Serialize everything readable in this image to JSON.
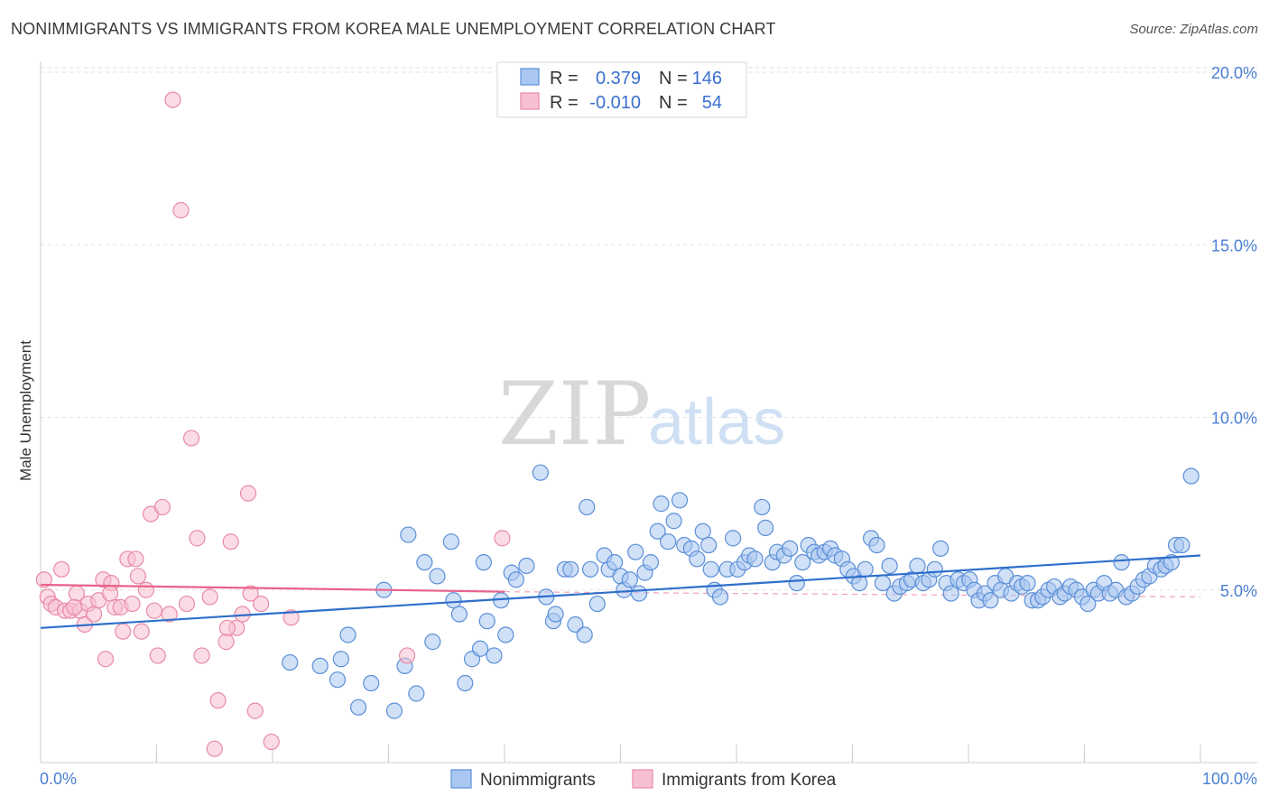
{
  "title": "NONIMMIGRANTS VS IMMIGRANTS FROM KOREA MALE UNEMPLOYMENT CORRELATION CHART",
  "source": "Source: ZipAtlas.com",
  "watermark": {
    "zip": "ZIP",
    "atlas": "atlas"
  },
  "chart_data": {
    "type": "scatter",
    "title": "NONIMMIGRANTS VS IMMIGRANTS FROM KOREA MALE UNEMPLOYMENT CORRELATION CHART",
    "xlabel": "",
    "ylabel": "Male Unemployment",
    "xlim": [
      0,
      100
    ],
    "ylim": [
      0,
      20.5
    ],
    "x_tick_labels": [
      "0.0%",
      "100.0%"
    ],
    "y_ticks": [
      5,
      10,
      15,
      20
    ],
    "y_tick_labels": [
      "5.0%",
      "10.0%",
      "15.0%",
      "20.0%"
    ],
    "grid": true,
    "legend": {
      "position": "top-center",
      "entries": [
        {
          "r_label": "R =",
          "r_value": "0.379",
          "n_label": "N =",
          "n_value": "146"
        },
        {
          "r_label": "R =",
          "r_value": "-0.010",
          "n_label": "N =",
          "n_value": "54"
        }
      ]
    },
    "series": [
      {
        "name": "Nonimmigrants",
        "color": "#a9c7f0",
        "stroke": "#5b8fd8",
        "trend_color": "#2f6fcb",
        "trend": {
          "x": [
            0,
            100
          ],
          "y": [
            3.9,
            6.0
          ]
        },
        "points": [
          [
            21.5,
            2.9
          ],
          [
            24.1,
            2.8
          ],
          [
            25.6,
            2.4
          ],
          [
            25.9,
            3.0
          ],
          [
            26.5,
            3.7
          ],
          [
            27.4,
            1.6
          ],
          [
            28.5,
            2.3
          ],
          [
            29.6,
            5.0
          ],
          [
            30.5,
            1.5
          ],
          [
            31.4,
            2.8
          ],
          [
            31.7,
            6.6
          ],
          [
            32.4,
            2.0
          ],
          [
            33.1,
            5.8
          ],
          [
            33.8,
            3.5
          ],
          [
            34.2,
            5.4
          ],
          [
            35.4,
            6.4
          ],
          [
            35.6,
            4.7
          ],
          [
            36.1,
            4.3
          ],
          [
            36.6,
            2.3
          ],
          [
            37.2,
            3.0
          ],
          [
            37.9,
            3.3
          ],
          [
            38.2,
            5.8
          ],
          [
            38.5,
            4.1
          ],
          [
            39.1,
            3.1
          ],
          [
            39.7,
            4.7
          ],
          [
            40.1,
            3.7
          ],
          [
            40.6,
            5.5
          ],
          [
            41.0,
            5.3
          ],
          [
            41.9,
            5.7
          ],
          [
            43.1,
            8.4
          ],
          [
            43.6,
            4.8
          ],
          [
            44.2,
            4.1
          ],
          [
            44.4,
            4.3
          ],
          [
            45.2,
            5.6
          ],
          [
            45.7,
            5.6
          ],
          [
            46.1,
            4.0
          ],
          [
            46.9,
            3.7
          ],
          [
            47.1,
            7.4
          ],
          [
            47.4,
            5.6
          ],
          [
            48.0,
            4.6
          ],
          [
            48.6,
            6.0
          ],
          [
            49.0,
            5.6
          ],
          [
            49.5,
            5.8
          ],
          [
            50.0,
            5.4
          ],
          [
            50.3,
            5.0
          ],
          [
            50.8,
            5.3
          ],
          [
            51.3,
            6.1
          ],
          [
            51.6,
            4.9
          ],
          [
            52.1,
            5.5
          ],
          [
            52.6,
            5.8
          ],
          [
            53.2,
            6.7
          ],
          [
            53.5,
            7.5
          ],
          [
            54.1,
            6.4
          ],
          [
            54.6,
            7.0
          ],
          [
            55.1,
            7.6
          ],
          [
            55.5,
            6.3
          ],
          [
            56.1,
            6.2
          ],
          [
            56.6,
            5.9
          ],
          [
            57.1,
            6.7
          ],
          [
            57.6,
            6.3
          ],
          [
            58.1,
            5.0
          ],
          [
            58.6,
            4.8
          ],
          [
            59.2,
            5.6
          ],
          [
            59.7,
            6.5
          ],
          [
            60.1,
            5.6
          ],
          [
            60.7,
            5.8
          ],
          [
            61.1,
            6.0
          ],
          [
            61.6,
            5.9
          ],
          [
            62.2,
            7.4
          ],
          [
            62.5,
            6.8
          ],
          [
            63.1,
            5.8
          ],
          [
            63.5,
            6.1
          ],
          [
            64.1,
            6.0
          ],
          [
            64.6,
            6.2
          ],
          [
            65.2,
            5.2
          ],
          [
            65.7,
            5.8
          ],
          [
            66.2,
            6.3
          ],
          [
            66.7,
            6.1
          ],
          [
            67.1,
            6.0
          ],
          [
            67.6,
            6.1
          ],
          [
            68.1,
            6.2
          ],
          [
            68.5,
            6.0
          ],
          [
            69.1,
            5.9
          ],
          [
            69.6,
            5.6
          ],
          [
            70.1,
            5.4
          ],
          [
            70.6,
            5.2
          ],
          [
            71.1,
            5.6
          ],
          [
            71.6,
            6.5
          ],
          [
            72.1,
            6.3
          ],
          [
            72.6,
            5.2
          ],
          [
            73.2,
            5.7
          ],
          [
            73.6,
            4.9
          ],
          [
            74.1,
            5.1
          ],
          [
            74.7,
            5.2
          ],
          [
            75.1,
            5.3
          ],
          [
            75.6,
            5.7
          ],
          [
            76.1,
            5.2
          ],
          [
            76.6,
            5.3
          ],
          [
            77.1,
            5.6
          ],
          [
            77.6,
            6.2
          ],
          [
            78.1,
            5.2
          ],
          [
            78.5,
            4.9
          ],
          [
            79.1,
            5.3
          ],
          [
            79.6,
            5.2
          ],
          [
            80.1,
            5.3
          ],
          [
            80.5,
            5.0
          ],
          [
            80.9,
            4.7
          ],
          [
            81.4,
            4.9
          ],
          [
            81.9,
            4.7
          ],
          [
            82.3,
            5.2
          ],
          [
            82.8,
            5.0
          ],
          [
            83.2,
            5.4
          ],
          [
            83.7,
            4.9
          ],
          [
            84.2,
            5.2
          ],
          [
            84.6,
            5.1
          ],
          [
            85.1,
            5.2
          ],
          [
            85.5,
            4.7
          ],
          [
            86.0,
            4.7
          ],
          [
            86.4,
            4.8
          ],
          [
            86.9,
            5.0
          ],
          [
            87.4,
            5.1
          ],
          [
            87.9,
            4.8
          ],
          [
            88.3,
            4.9
          ],
          [
            88.8,
            5.1
          ],
          [
            89.3,
            5.0
          ],
          [
            89.8,
            4.8
          ],
          [
            90.3,
            4.6
          ],
          [
            90.8,
            5.0
          ],
          [
            91.2,
            4.9
          ],
          [
            91.7,
            5.2
          ],
          [
            92.2,
            4.9
          ],
          [
            92.7,
            5.0
          ],
          [
            93.2,
            5.8
          ],
          [
            93.6,
            4.8
          ],
          [
            94.1,
            4.9
          ],
          [
            94.6,
            5.1
          ],
          [
            95.1,
            5.3
          ],
          [
            95.6,
            5.4
          ],
          [
            96.1,
            5.7
          ],
          [
            96.6,
            5.6
          ],
          [
            97.0,
            5.7
          ],
          [
            97.5,
            5.8
          ],
          [
            97.9,
            6.3
          ],
          [
            98.4,
            6.3
          ],
          [
            99.2,
            8.3
          ],
          [
            57.8,
            5.6
          ]
        ]
      },
      {
        "name": "Immigrants from Korea",
        "color": "#f7c0d0",
        "stroke": "#e88aa8",
        "trend_color": "#e8638a",
        "trend": {
          "x": [
            0,
            40
          ],
          "y": [
            5.15,
            4.95
          ]
        },
        "trend_dashed": {
          "x": [
            40,
            100
          ],
          "y": [
            4.95,
            4.8
          ]
        },
        "points": [
          [
            0.3,
            5.3
          ],
          [
            0.6,
            4.8
          ],
          [
            0.9,
            4.6
          ],
          [
            1.3,
            4.5
          ],
          [
            1.8,
            5.6
          ],
          [
            2.1,
            4.4
          ],
          [
            2.6,
            4.4
          ],
          [
            3.1,
            4.9
          ],
          [
            3.4,
            4.4
          ],
          [
            3.8,
            4.0
          ],
          [
            4.1,
            4.6
          ],
          [
            4.6,
            4.3
          ],
          [
            5.0,
            4.7
          ],
          [
            5.4,
            5.3
          ],
          [
            5.6,
            3.0
          ],
          [
            6.1,
            5.2
          ],
          [
            6.4,
            4.5
          ],
          [
            6.9,
            4.5
          ],
          [
            7.1,
            3.8
          ],
          [
            7.5,
            5.9
          ],
          [
            7.9,
            4.6
          ],
          [
            8.2,
            5.9
          ],
          [
            8.4,
            5.4
          ],
          [
            8.7,
            3.8
          ],
          [
            9.1,
            5.0
          ],
          [
            9.5,
            7.2
          ],
          [
            9.8,
            4.4
          ],
          [
            10.1,
            3.1
          ],
          [
            10.5,
            7.4
          ],
          [
            11.1,
            4.3
          ],
          [
            11.4,
            19.2
          ],
          [
            12.1,
            16.0
          ],
          [
            12.6,
            4.6
          ],
          [
            13.0,
            9.4
          ],
          [
            13.5,
            6.5
          ],
          [
            13.9,
            3.1
          ],
          [
            14.6,
            4.8
          ],
          [
            15.0,
            0.4
          ],
          [
            15.3,
            1.8
          ],
          [
            16.0,
            3.5
          ],
          [
            16.4,
            6.4
          ],
          [
            16.9,
            3.9
          ],
          [
            17.4,
            4.3
          ],
          [
            17.9,
            7.8
          ],
          [
            18.1,
            4.9
          ],
          [
            18.5,
            1.5
          ],
          [
            19.0,
            4.6
          ],
          [
            19.9,
            0.6
          ],
          [
            21.6,
            4.2
          ],
          [
            31.6,
            3.1
          ],
          [
            39.8,
            6.5
          ],
          [
            6.0,
            4.9
          ],
          [
            2.9,
            4.5
          ],
          [
            16.1,
            3.9
          ]
        ]
      }
    ]
  },
  "bottom_legend": [
    {
      "label": "Nonimmigrants"
    },
    {
      "label": "Immigrants from Korea"
    }
  ]
}
